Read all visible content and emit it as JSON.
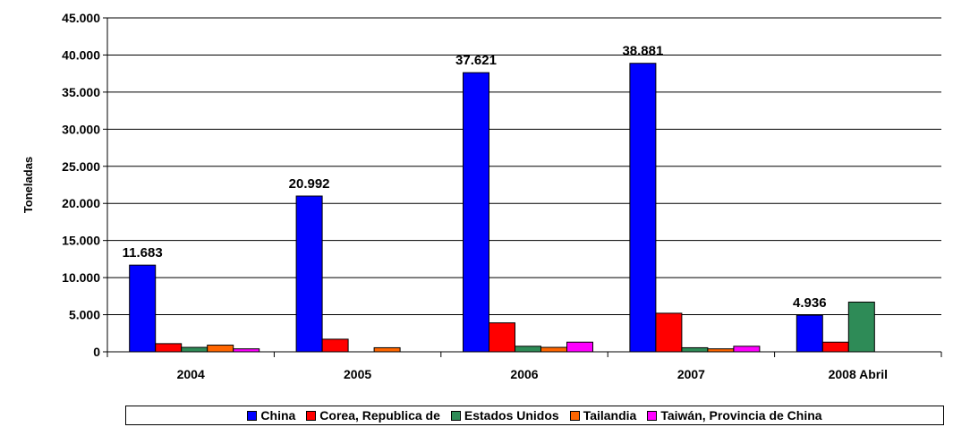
{
  "chart_data": {
    "type": "bar",
    "categories": [
      "2004",
      "2005",
      "2006",
      "2007",
      "2008 Abril"
    ],
    "ylabel": "Toneladas",
    "xlabel": "",
    "ylim": [
      0,
      45000
    ],
    "yticks": [
      "0",
      "5.000",
      "10.000",
      "15.000",
      "20.000",
      "25.000",
      "30.000",
      "35.000",
      "40.000",
      "45.000"
    ],
    "grid": true,
    "legend_position": "bottom",
    "series": [
      {
        "name": "China",
        "color": "#0000FF",
        "values": [
          11683,
          20992,
          37621,
          38881,
          4936
        ],
        "labels": [
          "11.683",
          "20.992",
          "37.621",
          "38.881",
          "4.936"
        ]
      },
      {
        "name": "Corea, Republica de",
        "color": "#FF0000",
        "values": [
          1100,
          1700,
          3900,
          5200,
          1300
        ]
      },
      {
        "name": "Estados Unidos",
        "color": "#2E8B57",
        "values": [
          600,
          0,
          750,
          550,
          6700
        ]
      },
      {
        "name": "Tailandia",
        "color": "#FF6600",
        "values": [
          900,
          550,
          600,
          400,
          0
        ]
      },
      {
        "name": "Taiwán, Provincia de China",
        "color": "#FF00FF",
        "values": [
          400,
          0,
          1300,
          750,
          0
        ]
      }
    ]
  }
}
